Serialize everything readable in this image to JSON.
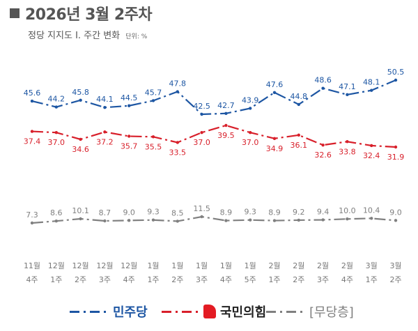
{
  "header": {
    "title": "2026년 3월 2주차",
    "subtitle": "정당 지지도 Ⅰ. 주간 변화",
    "unit": "단위: %"
  },
  "chart_data": {
    "type": "line",
    "categories": [
      [
        "11월",
        "4주"
      ],
      [
        "12월",
        "1주"
      ],
      [
        "12월",
        "2주"
      ],
      [
        "12월",
        "3주"
      ],
      [
        "12월",
        "4주"
      ],
      [
        "1월",
        "1주"
      ],
      [
        "1월",
        "2주"
      ],
      [
        "1월",
        "3주"
      ],
      [
        "1월",
        "4주"
      ],
      [
        "1월",
        "5주"
      ],
      [
        "2월",
        "1주"
      ],
      [
        "2월",
        "2주"
      ],
      [
        "2월",
        "3주"
      ],
      [
        "2월",
        "4주"
      ],
      [
        "3월",
        "1주"
      ],
      [
        "3월",
        "2주"
      ]
    ],
    "series": [
      {
        "name": "민주당",
        "color": "#1d56a3",
        "values": [
          45.6,
          44.2,
          45.8,
          44.1,
          44.5,
          45.7,
          47.8,
          42.5,
          42.7,
          43.9,
          47.6,
          44.8,
          48.6,
          47.1,
          48.1,
          50.5
        ]
      },
      {
        "name": "국민의힘",
        "color": "#d81f2a",
        "values": [
          37.4,
          37.0,
          34.6,
          37.2,
          35.7,
          35.5,
          33.5,
          37.0,
          39.5,
          37.0,
          34.9,
          36.1,
          32.6,
          33.8,
          32.4,
          31.9
        ]
      },
      {
        "name": "무당층",
        "color": "#808080",
        "values": [
          7.3,
          8.6,
          10.1,
          8.7,
          9.0,
          9.3,
          8.5,
          11.5,
          8.9,
          9.3,
          8.9,
          9.2,
          9.4,
          10.0,
          10.4,
          9.0
        ]
      }
    ],
    "legend_position": "bottom",
    "grid": false
  },
  "legend": {
    "items": [
      {
        "label": "민주당",
        "color": "#1d56a3"
      },
      {
        "label": "국민의힘",
        "color": "#d81f2a"
      },
      {
        "label": "[무당층]",
        "color": "#808080"
      }
    ]
  }
}
